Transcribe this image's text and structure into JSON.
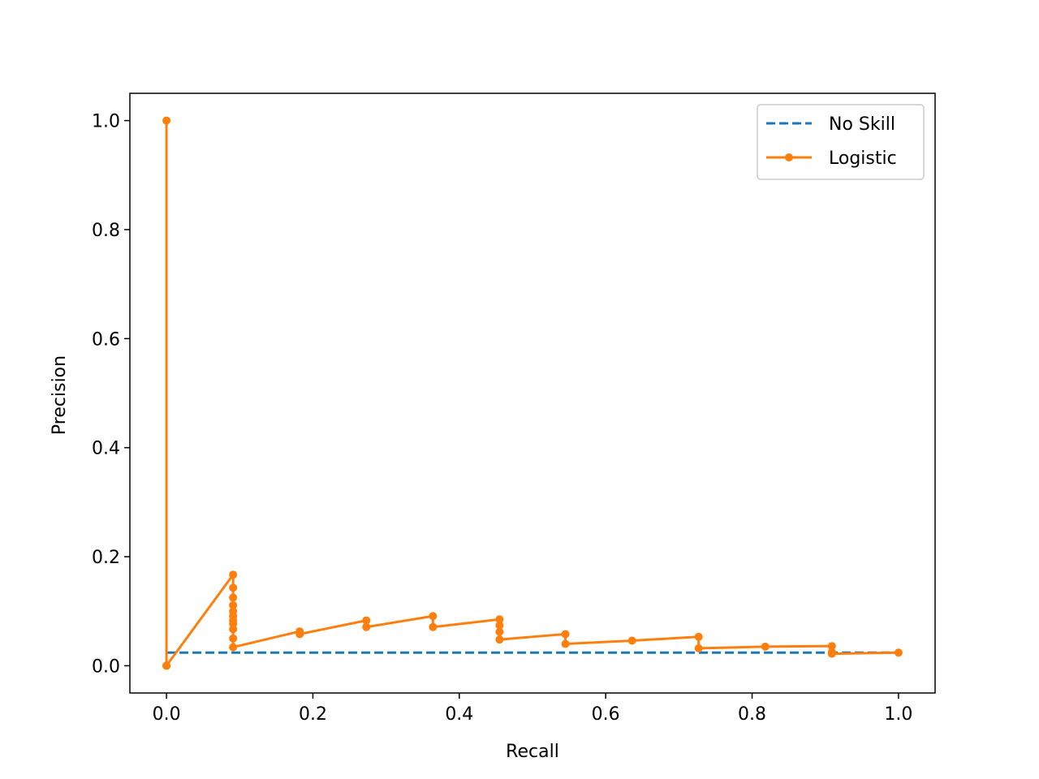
{
  "chart_data": {
    "type": "line",
    "title": "",
    "xlabel": "Recall",
    "ylabel": "Precision",
    "xlim": [
      -0.05,
      1.05
    ],
    "ylim": [
      -0.05,
      1.05
    ],
    "xticks": [
      0.0,
      0.2,
      0.4,
      0.6,
      0.8,
      1.0
    ],
    "yticks": [
      0.0,
      0.2,
      0.4,
      0.6,
      0.8,
      1.0
    ],
    "xtick_labels": [
      "0.0",
      "0.2",
      "0.4",
      "0.6",
      "0.8",
      "1.0"
    ],
    "ytick_labels": [
      "0.0",
      "0.2",
      "0.4",
      "0.6",
      "0.8",
      "1.0"
    ],
    "grid": false,
    "legend": "top-right",
    "series": [
      {
        "name": "No Skill",
        "style": "dashed",
        "markers": false,
        "color": "#1f77b4",
        "x": [
          0.0,
          1.0
        ],
        "y": [
          0.024,
          0.024
        ]
      },
      {
        "name": "Logistic",
        "style": "solid",
        "markers": true,
        "color": "#ff7f0e",
        "x": [
          0.0,
          0.0,
          0.0,
          0.091,
          0.091,
          0.091,
          0.091,
          0.091,
          0.091,
          0.091,
          0.091,
          0.091,
          0.091,
          0.091,
          0.182,
          0.182,
          0.273,
          0.273,
          0.364,
          0.364,
          0.455,
          0.455,
          0.455,
          0.455,
          0.545,
          0.545,
          0.636,
          0.727,
          0.727,
          0.818,
          0.909,
          0.909,
          0.909,
          1.0
        ],
        "y": [
          0.0,
          1.0,
          0.0,
          0.167,
          0.143,
          0.125,
          0.111,
          0.1,
          0.091,
          0.083,
          0.077,
          0.067,
          0.05,
          0.034,
          0.063,
          0.058,
          0.083,
          0.071,
          0.091,
          0.071,
          0.085,
          0.074,
          0.062,
          0.048,
          0.058,
          0.04,
          0.046,
          0.053,
          0.032,
          0.035,
          0.036,
          0.025,
          0.022,
          0.024
        ]
      }
    ]
  }
}
